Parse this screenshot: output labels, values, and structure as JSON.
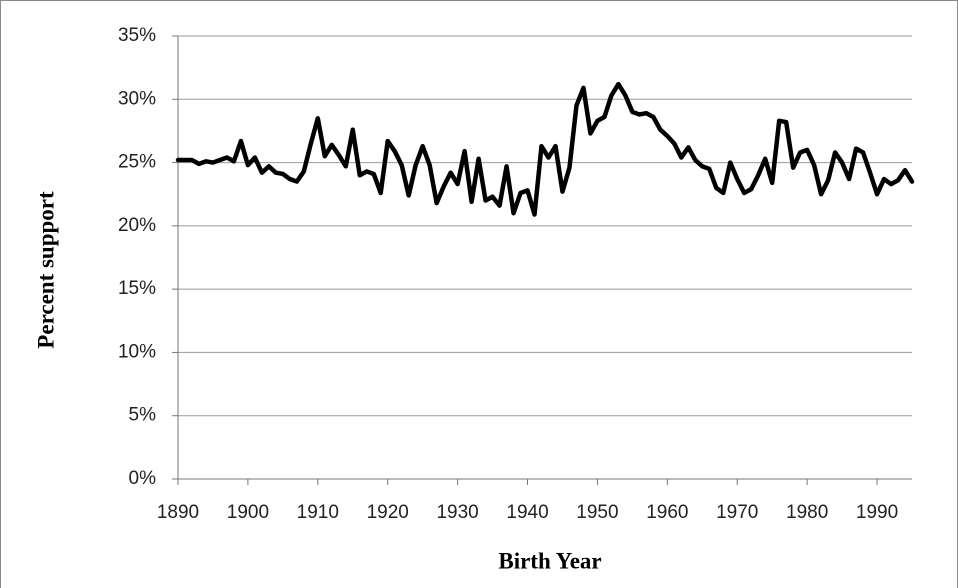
{
  "chart_data": {
    "type": "line",
    "x_label": "Birth Year",
    "y_label": "Percent support",
    "x": [
      1890,
      1891,
      1892,
      1893,
      1894,
      1895,
      1896,
      1897,
      1898,
      1899,
      1900,
      1901,
      1902,
      1903,
      1904,
      1905,
      1906,
      1907,
      1908,
      1909,
      1910,
      1911,
      1912,
      1913,
      1914,
      1915,
      1916,
      1917,
      1918,
      1919,
      1920,
      1921,
      1922,
      1923,
      1924,
      1925,
      1926,
      1927,
      1928,
      1929,
      1930,
      1931,
      1932,
      1933,
      1934,
      1935,
      1936,
      1937,
      1938,
      1939,
      1940,
      1941,
      1942,
      1943,
      1944,
      1945,
      1946,
      1947,
      1948,
      1949,
      1950,
      1951,
      1952,
      1953,
      1954,
      1955,
      1956,
      1957,
      1958,
      1959,
      1960,
      1961,
      1962,
      1963,
      1964,
      1965,
      1966,
      1967,
      1968,
      1969,
      1970,
      1971,
      1972,
      1973,
      1974,
      1975,
      1976,
      1977,
      1978,
      1979,
      1980,
      1981,
      1982,
      1983,
      1984,
      1985,
      1986,
      1987,
      1988,
      1989,
      1990,
      1991,
      1992,
      1993,
      1994,
      1995
    ],
    "values": [
      25.2,
      25.2,
      25.2,
      24.9,
      25.1,
      25.0,
      25.2,
      25.4,
      25.1,
      26.7,
      24.8,
      25.4,
      24.2,
      24.7,
      24.2,
      24.1,
      23.7,
      23.5,
      24.3,
      26.5,
      28.5,
      25.5,
      26.4,
      25.6,
      24.7,
      27.6,
      24.0,
      24.3,
      24.1,
      22.6,
      26.7,
      25.9,
      24.8,
      22.4,
      24.8,
      26.3,
      24.8,
      21.8,
      23.1,
      24.2,
      23.3,
      25.9,
      21.9,
      25.3,
      22.0,
      22.3,
      21.6,
      24.7,
      21.0,
      22.6,
      22.8,
      20.9,
      26.3,
      25.4,
      26.3,
      22.7,
      24.6,
      29.5,
      30.9,
      27.3,
      28.3,
      28.6,
      30.3,
      31.2,
      30.3,
      29.0,
      28.8,
      28.9,
      28.6,
      27.6,
      27.1,
      26.5,
      25.4,
      26.2,
      25.2,
      24.7,
      24.5,
      23.0,
      22.6,
      25.0,
      23.7,
      22.6,
      22.9,
      24.0,
      25.3,
      23.4,
      28.3,
      28.2,
      24.6,
      25.8,
      26.0,
      24.8,
      22.5,
      23.6,
      25.8,
      25.0,
      23.7,
      26.1,
      25.8,
      24.2,
      22.5,
      23.7,
      23.3,
      23.6,
      24.4,
      23.5
    ],
    "color": "#000000",
    "xlim": [
      1890,
      1995
    ],
    "xticks": [
      1890,
      1900,
      1910,
      1920,
      1930,
      1940,
      1950,
      1960,
      1970,
      1980,
      1990
    ],
    "ylim": [
      0,
      35
    ],
    "yticks": [
      {
        "value": 0,
        "label": "0%"
      },
      {
        "value": 5,
        "label": "5%"
      },
      {
        "value": 10,
        "label": "10%"
      },
      {
        "value": 15,
        "label": "15%"
      },
      {
        "value": 20,
        "label": "20%"
      },
      {
        "value": 25,
        "label": "25%"
      },
      {
        "value": 30,
        "label": "30%"
      },
      {
        "value": 35,
        "label": "35%"
      }
    ],
    "grid": true
  }
}
